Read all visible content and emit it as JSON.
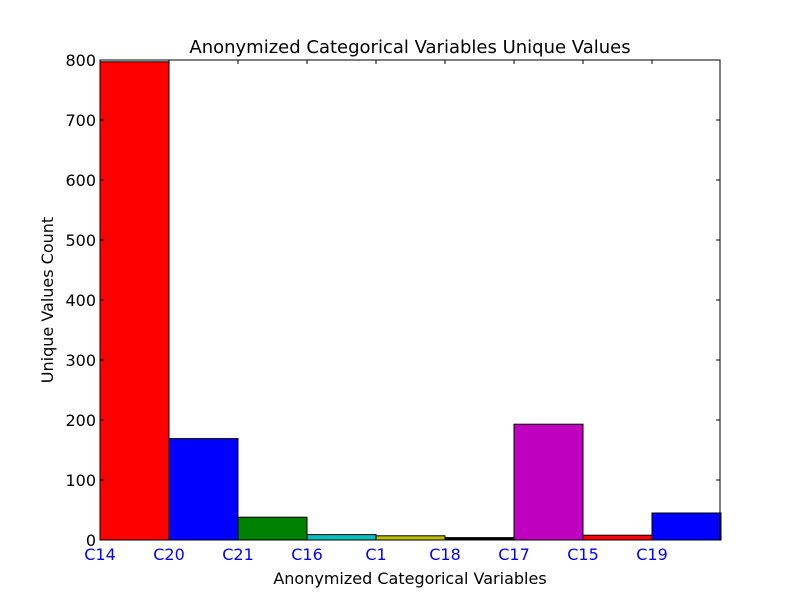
{
  "chart_data": {
    "type": "bar",
    "title": "Anonymized Categorical Variables Unique Values",
    "xlabel": "Anonymized Categorical Variables",
    "ylabel": "Unique Values Count",
    "categories": [
      "C14",
      "C20",
      "C21",
      "C16",
      "C1",
      "C18",
      "C17",
      "C15",
      "C19"
    ],
    "values": [
      797,
      169,
      38,
      9,
      7,
      4,
      193,
      8,
      45
    ],
    "bar_colors": [
      "#ff0000",
      "#0000ff",
      "#008000",
      "#00bfbf",
      "#bfbf00",
      "#000000",
      "#bf00bf",
      "#ff0000",
      "#0000ff"
    ],
    "ylim": [
      0,
      800
    ],
    "yticks": [
      0,
      100,
      200,
      300,
      400,
      500,
      600,
      700,
      800
    ],
    "xtick_color": "#0000ff",
    "grid": false,
    "legend": "none"
  }
}
